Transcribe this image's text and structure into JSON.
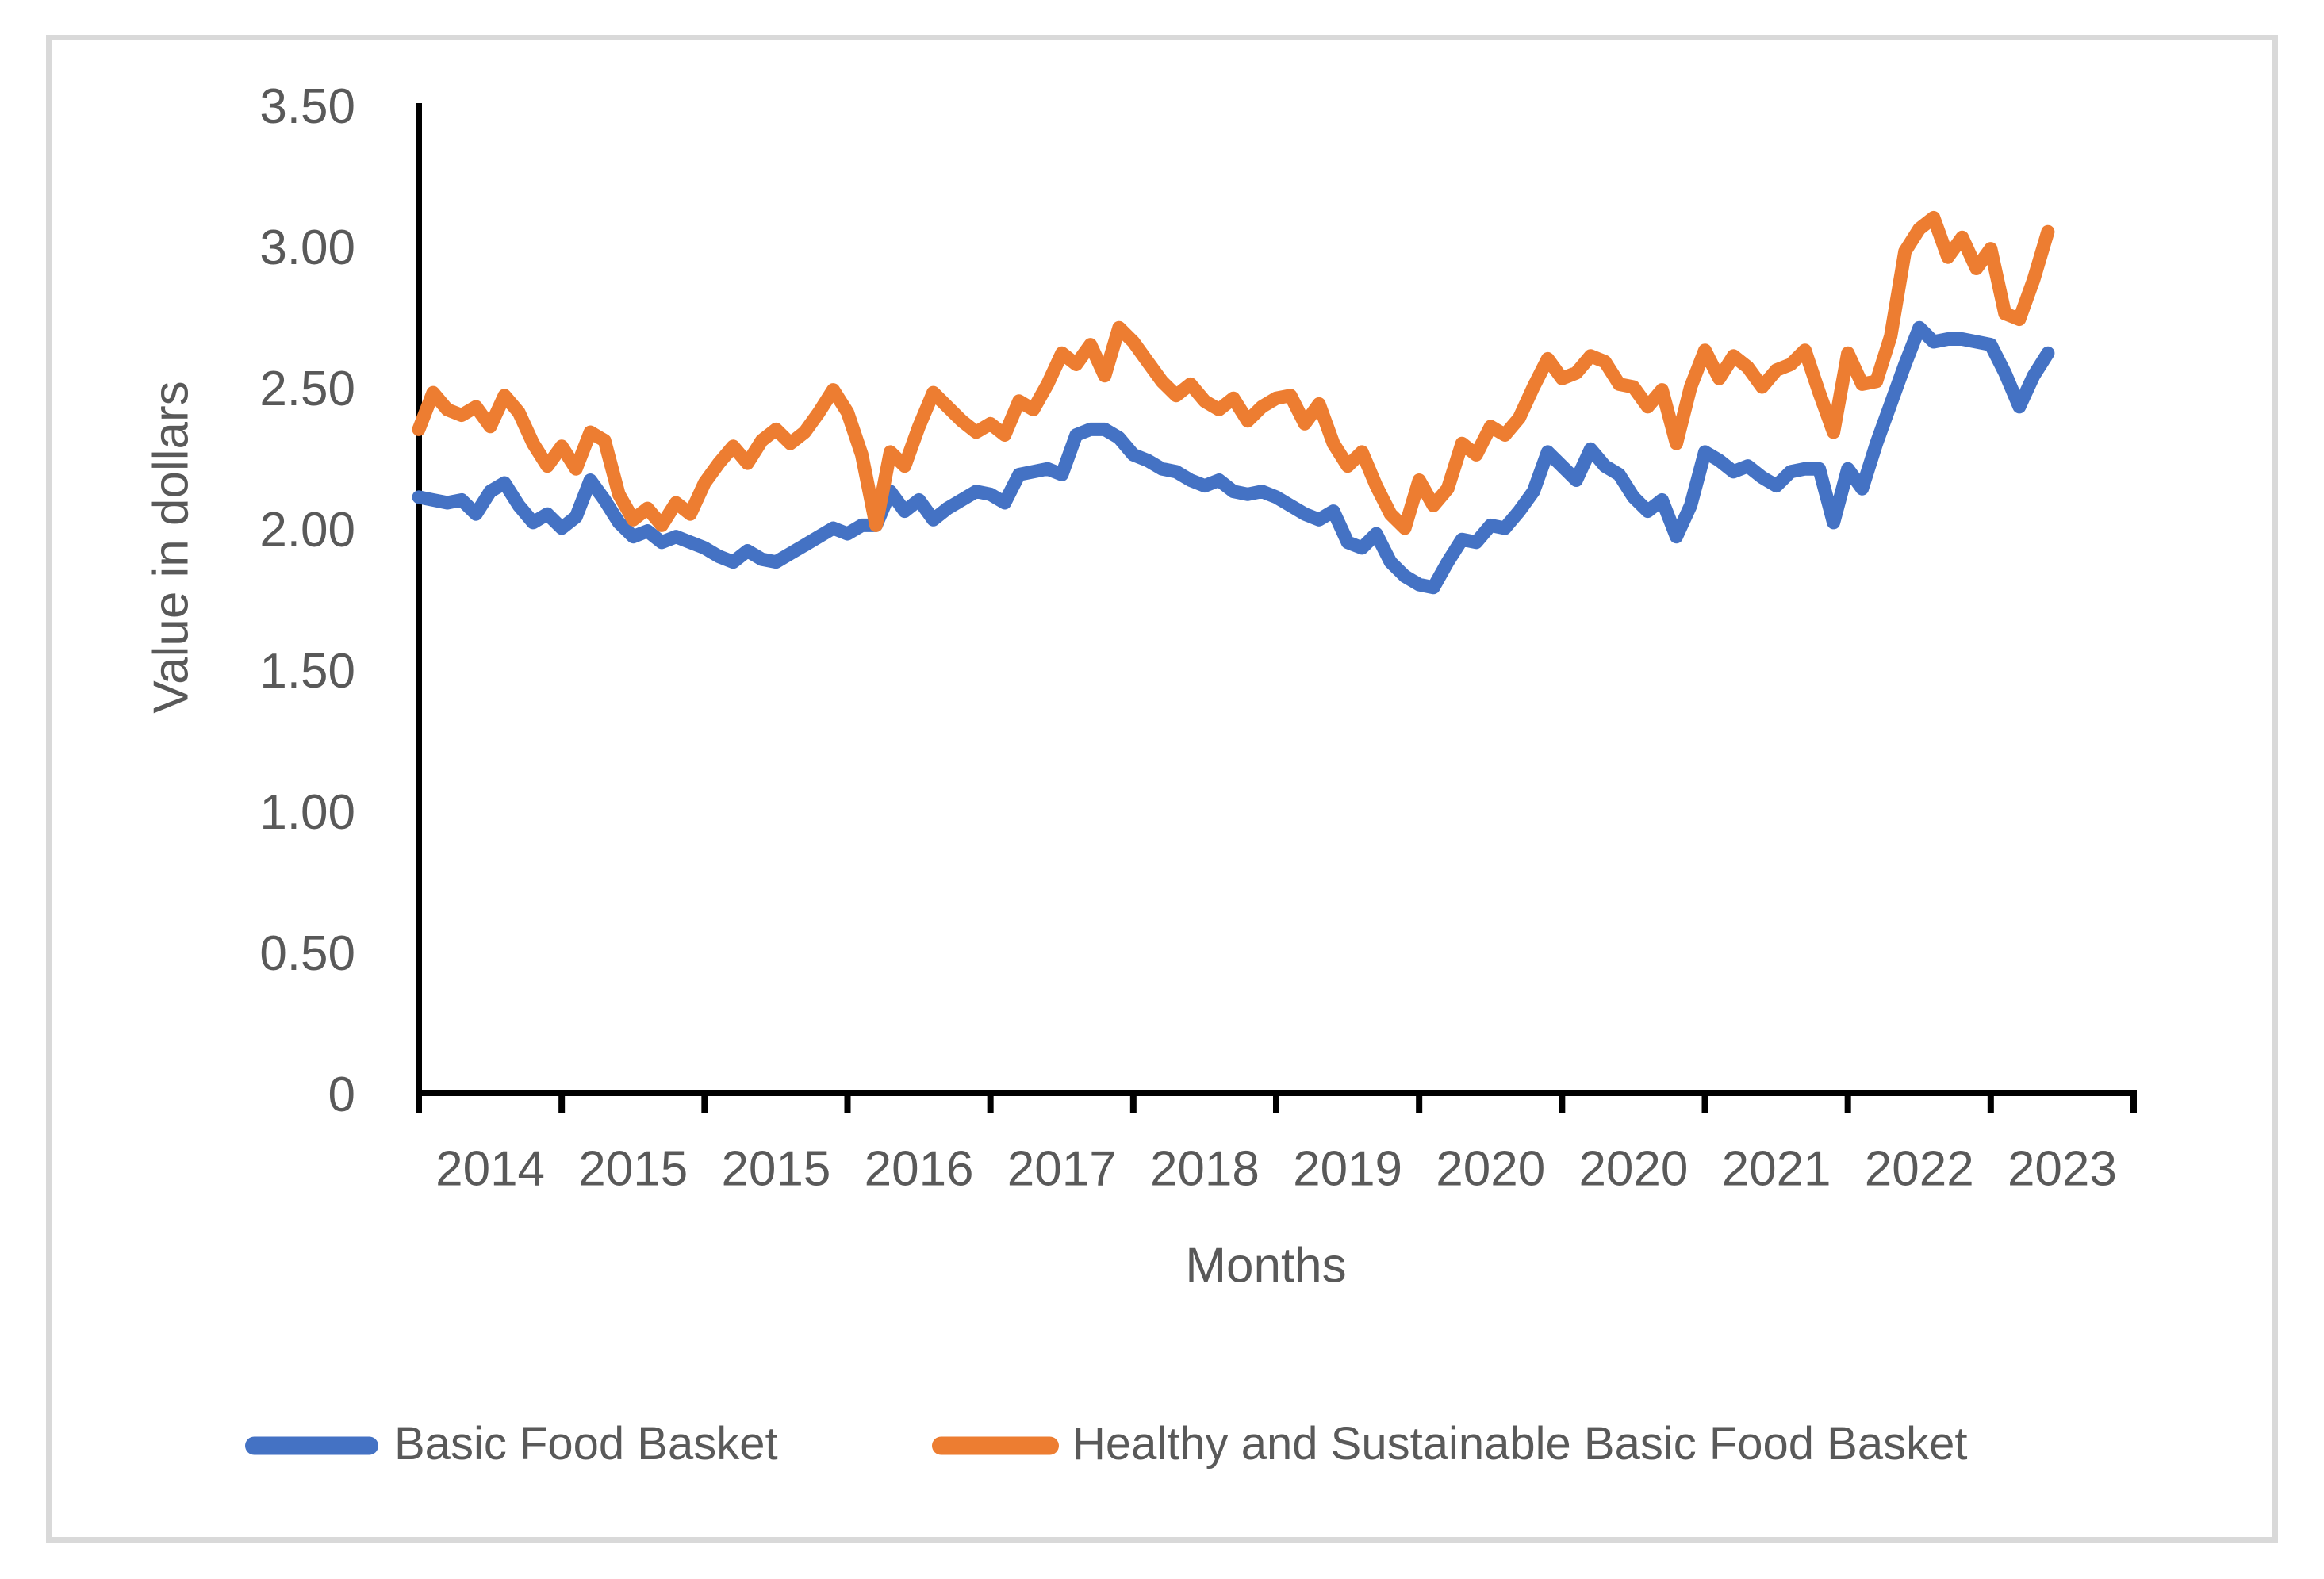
{
  "page": {
    "background": "#FFFFFF"
  },
  "card": {
    "background": "#FFFFFF",
    "border_color": "#D9D9D9"
  },
  "chart_data": {
    "type": "line",
    "title": "",
    "xlabel": "Months",
    "ylabel": "Value in dollars",
    "grid": false,
    "legend_position": "bottom",
    "axis_color": "#000000",
    "text_color": "#595959",
    "ylim": [
      0,
      3.5
    ],
    "y_tick_labels": [
      "3.50",
      "3.00",
      "2.50",
      "2.00",
      "1.50",
      "1.00",
      "0.50",
      "0"
    ],
    "y_tick_values": [
      3.5,
      3.0,
      2.5,
      2.0,
      1.5,
      1.0,
      0.5,
      0
    ],
    "x_tick_labels": [
      "2014",
      "2015",
      "2015",
      "2016",
      "2017",
      "2018",
      "2019",
      "2020",
      "2020",
      "2021",
      "2022",
      "2023"
    ],
    "x_unit": "monthly values, Jan 2014 - Jul 2023",
    "n_points": 115,
    "series": [
      {
        "name": "Basic Food Basket",
        "color": "#4472C4",
        "values": [
          2.11,
          2.1,
          2.09,
          2.1,
          2.05,
          2.13,
          2.16,
          2.08,
          2.02,
          2.05,
          2.0,
          2.04,
          2.17,
          2.1,
          2.02,
          1.97,
          1.99,
          1.95,
          1.97,
          1.95,
          1.93,
          1.9,
          1.88,
          1.92,
          1.89,
          1.88,
          1.91,
          1.94,
          1.97,
          2.0,
          1.98,
          2.01,
          2.01,
          2.13,
          2.06,
          2.1,
          2.03,
          2.07,
          2.1,
          2.13,
          2.12,
          2.09,
          2.19,
          2.2,
          2.21,
          2.19,
          2.33,
          2.35,
          2.35,
          2.32,
          2.26,
          2.24,
          2.21,
          2.2,
          2.17,
          2.15,
          2.17,
          2.13,
          2.12,
          2.13,
          2.11,
          2.08,
          2.05,
          2.03,
          2.06,
          1.95,
          1.93,
          1.98,
          1.88,
          1.83,
          1.8,
          1.79,
          1.88,
          1.96,
          1.95,
          2.01,
          2.0,
          2.06,
          2.13,
          2.27,
          2.22,
          2.17,
          2.28,
          2.22,
          2.19,
          2.11,
          2.06,
          2.1,
          1.97,
          2.08,
          2.27,
          2.24,
          2.2,
          2.22,
          2.18,
          2.15,
          2.2,
          2.21,
          2.21,
          2.02,
          2.21,
          2.14,
          2.3,
          2.44,
          2.58,
          2.71,
          2.66,
          2.67,
          2.67,
          2.66,
          2.65,
          2.55,
          2.43,
          2.54,
          2.62
        ]
      },
      {
        "name": "Healthy and Sustainable Basic Food Basket",
        "color": "#ED7D31",
        "values": [
          2.35,
          2.48,
          2.42,
          2.4,
          2.43,
          2.36,
          2.47,
          2.41,
          2.3,
          2.22,
          2.29,
          2.21,
          2.34,
          2.31,
          2.12,
          2.03,
          2.07,
          2.01,
          2.09,
          2.05,
          2.16,
          2.23,
          2.29,
          2.23,
          2.31,
          2.35,
          2.3,
          2.34,
          2.41,
          2.49,
          2.41,
          2.26,
          2.01,
          2.27,
          2.22,
          2.36,
          2.48,
          2.43,
          2.38,
          2.34,
          2.37,
          2.33,
          2.45,
          2.42,
          2.51,
          2.62,
          2.58,
          2.65,
          2.54,
          2.71,
          2.66,
          2.59,
          2.52,
          2.47,
          2.51,
          2.45,
          2.42,
          2.46,
          2.38,
          2.43,
          2.46,
          2.47,
          2.37,
          2.44,
          2.3,
          2.22,
          2.27,
          2.15,
          2.05,
          2.0,
          2.17,
          2.08,
          2.14,
          2.3,
          2.26,
          2.36,
          2.33,
          2.39,
          2.5,
          2.6,
          2.53,
          2.55,
          2.61,
          2.59,
          2.51,
          2.5,
          2.43,
          2.49,
          2.3,
          2.5,
          2.63,
          2.53,
          2.61,
          2.57,
          2.5,
          2.56,
          2.58,
          2.63,
          2.48,
          2.34,
          2.62,
          2.51,
          2.52,
          2.68,
          2.98,
          3.06,
          3.1,
          2.96,
          3.03,
          2.92,
          2.99,
          2.76,
          2.74,
          2.88,
          3.05
        ]
      }
    ]
  },
  "legend": {
    "items": [
      {
        "label": "Basic Food Basket",
        "color": "#4472C4"
      },
      {
        "label": "Healthy and Sustainable Basic Food Basket",
        "color": "#ED7D31"
      }
    ]
  }
}
